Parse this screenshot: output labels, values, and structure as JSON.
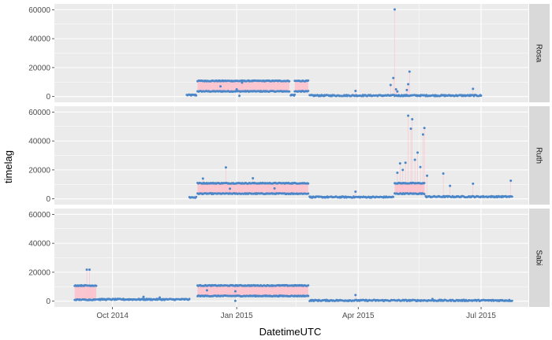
{
  "chart_data": {
    "type": "scatter",
    "xlabel": "DatetimeUTC",
    "ylabel": "timelag",
    "ylim": [
      -4000,
      64000
    ],
    "x_ticks": [
      {
        "date": "2014-10-01",
        "label": "Oct 2014"
      },
      {
        "date": "2015-01-01",
        "label": "Jan 2015"
      },
      {
        "date": "2015-04-01",
        "label": "Apr 2015"
      },
      {
        "date": "2015-07-01",
        "label": "Jul 2015"
      }
    ],
    "y_ticks": [
      0,
      20000,
      40000,
      60000
    ],
    "xlim": [
      "2014-08-19",
      "2015-08-05"
    ],
    "colors": {
      "points": "#4a86c8",
      "lines": "#ffc0cb",
      "panel_bg": "#ebebeb",
      "strip_bg": "#d9d9d9",
      "grid": "#ffffff"
    },
    "panels": [
      {
        "name": "Rosa",
        "segments": [
          {
            "start": "2014-11-25",
            "end": "2014-12-02",
            "values": [
              1000
            ]
          },
          {
            "start": "2014-12-03",
            "end": "2015-02-09",
            "values": [
              3600,
              10800
            ]
          },
          {
            "start": "2015-02-10",
            "end": "2015-02-13",
            "values": [
              1000
            ]
          },
          {
            "start": "2015-02-13",
            "end": "2015-02-23",
            "values": [
              3600,
              10800
            ]
          },
          {
            "start": "2015-02-24",
            "end": "2015-07-01",
            "values": [
              700
            ]
          }
        ],
        "spikes": [
          {
            "date": "2014-12-20",
            "value": 7000
          },
          {
            "date": "2015-01-01",
            "value": 5000
          },
          {
            "date": "2015-01-03",
            "value": 500
          },
          {
            "date": "2015-01-05",
            "value": 9600
          },
          {
            "date": "2015-03-30",
            "value": 3900
          },
          {
            "date": "2015-04-25",
            "value": 8000
          },
          {
            "date": "2015-04-27",
            "value": 12800
          },
          {
            "date": "2015-04-28",
            "value": 60200
          },
          {
            "date": "2015-04-29",
            "value": 5000
          },
          {
            "date": "2015-04-30",
            "value": 3500
          },
          {
            "date": "2015-05-07",
            "value": 4500
          },
          {
            "date": "2015-05-08",
            "value": 8500
          },
          {
            "date": "2015-05-09",
            "value": 17200
          },
          {
            "date": "2015-06-25",
            "value": 5300
          }
        ]
      },
      {
        "name": "Ruth",
        "segments": [
          {
            "start": "2014-11-27",
            "end": "2014-12-02",
            "values": [
              1000
            ]
          },
          {
            "start": "2014-12-03",
            "end": "2015-02-23",
            "values": [
              3600,
              10800
            ]
          },
          {
            "start": "2015-02-24",
            "end": "2015-04-27",
            "values": [
              1200
            ]
          },
          {
            "start": "2015-04-28",
            "end": "2015-05-20",
            "values": [
              3600,
              10800
            ]
          },
          {
            "start": "2015-05-21",
            "end": "2015-07-24",
            "values": [
              1500
            ]
          }
        ],
        "spikes": [
          {
            "date": "2014-12-07",
            "value": 14000
          },
          {
            "date": "2014-12-24",
            "value": 21700
          },
          {
            "date": "2014-12-27",
            "value": 7000
          },
          {
            "date": "2015-01-13",
            "value": 14200
          },
          {
            "date": "2015-01-29",
            "value": 7200
          },
          {
            "date": "2015-03-30",
            "value": 5000
          },
          {
            "date": "2015-04-30",
            "value": 18000
          },
          {
            "date": "2015-05-02",
            "value": 24500
          },
          {
            "date": "2015-05-04",
            "value": 20000
          },
          {
            "date": "2015-05-06",
            "value": 25000
          },
          {
            "date": "2015-05-08",
            "value": 57500
          },
          {
            "date": "2015-05-10",
            "value": 48500
          },
          {
            "date": "2015-05-11",
            "value": 55000
          },
          {
            "date": "2015-05-13",
            "value": 27000
          },
          {
            "date": "2015-05-15",
            "value": 32000
          },
          {
            "date": "2015-05-17",
            "value": 22000
          },
          {
            "date": "2015-05-19",
            "value": 44500
          },
          {
            "date": "2015-05-20",
            "value": 49000
          },
          {
            "date": "2015-05-22",
            "value": 16000
          },
          {
            "date": "2015-06-03",
            "value": 17500
          },
          {
            "date": "2015-06-08",
            "value": 9000
          },
          {
            "date": "2015-06-25",
            "value": 10500
          },
          {
            "date": "2015-07-23",
            "value": 12500
          }
        ]
      },
      {
        "name": "Sabi",
        "segments": [
          {
            "start": "2014-09-03",
            "end": "2014-09-19",
            "values": [
              1000,
              10800
            ]
          },
          {
            "start": "2014-09-20",
            "end": "2014-11-27",
            "values": [
              1200
            ]
          },
          {
            "start": "2014-12-03",
            "end": "2015-02-23",
            "values": [
              3600,
              10800
            ]
          },
          {
            "start": "2015-02-24",
            "end": "2015-07-24",
            "values": [
              500
            ]
          }
        ],
        "spikes": [
          {
            "date": "2014-09-12",
            "value": 21800
          },
          {
            "date": "2014-09-14",
            "value": 21800
          },
          {
            "date": "2014-10-24",
            "value": 3000
          },
          {
            "date": "2014-11-05",
            "value": 2500
          },
          {
            "date": "2014-12-10",
            "value": 7500
          },
          {
            "date": "2014-12-31",
            "value": 6800
          },
          {
            "date": "2014-12-31",
            "value": 200
          },
          {
            "date": "2015-03-30",
            "value": 4200
          },
          {
            "date": "2015-05-26",
            "value": 1500
          }
        ]
      }
    ]
  }
}
